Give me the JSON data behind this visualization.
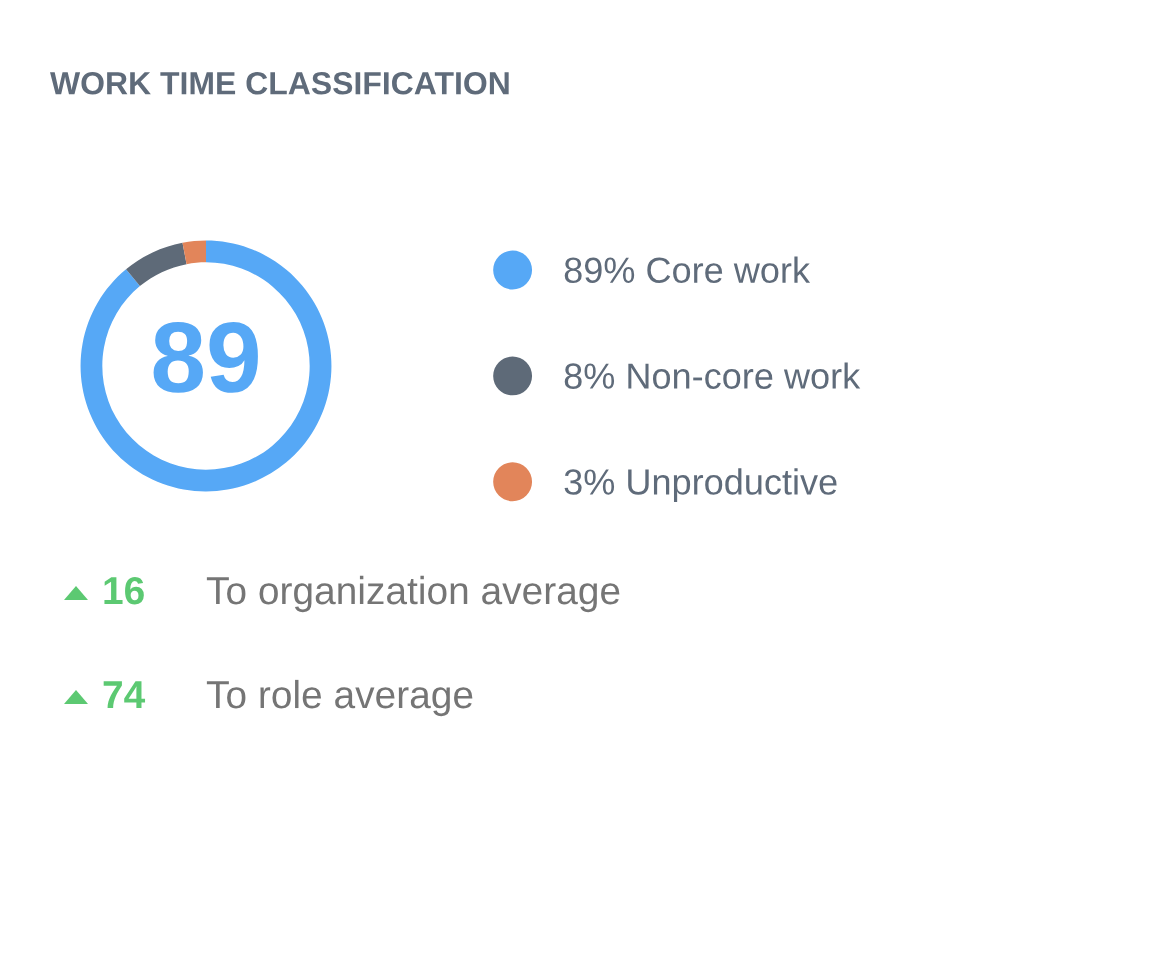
{
  "chart_data": {
    "type": "donut",
    "title": "WORK TIME CLASSIFICATION",
    "categories": [
      "89% Core work",
      "8% Non-core work",
      "3% Unproductive"
    ],
    "values": [
      89,
      8,
      3
    ],
    "colors": [
      "#56a8f6",
      "#5e6a78",
      "#e2855a"
    ],
    "legend": "right",
    "annotations": [
      "89",
      "16",
      "To organization average",
      "74",
      "To role average"
    ]
  }
}
